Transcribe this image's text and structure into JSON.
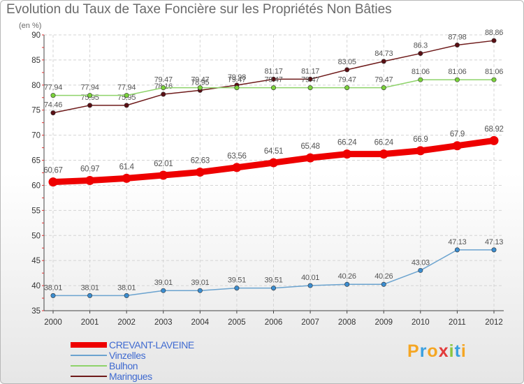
{
  "page": {
    "title": "Evolution du Taux de Taxe Foncière sur les Propriétés Non Bâties",
    "subtitle": "(en %)"
  },
  "logo": {
    "letters": [
      "P",
      "r",
      "o",
      "x",
      "i",
      "t",
      "i"
    ],
    "colors": [
      "#f5a623",
      "#3aa0e0",
      "#f5a623",
      "#e23b3b",
      "#8cc63f",
      "#3aa0e0",
      "#f5a623"
    ]
  },
  "chart_data": {
    "type": "line",
    "title": "Evolution du Taux de Taxe Foncière sur les Propriétés Non Bâties",
    "ylabel": "(en %)",
    "xlabel": "",
    "ylim": [
      35,
      90
    ],
    "yticks": [
      35,
      40,
      45,
      50,
      55,
      60,
      65,
      70,
      75,
      80,
      85,
      90
    ],
    "x": [
      "2000",
      "2001",
      "2002",
      "2003",
      "2004",
      "2005",
      "2006",
      "2007",
      "2008",
      "2009",
      "2010",
      "2011",
      "2012"
    ],
    "series": [
      {
        "name": "Maringues",
        "color": "#6e1a1a",
        "markerColor": "#5a0f14",
        "values": [
          74.46,
          75.95,
          75.95,
          78.16,
          78.95,
          79.98,
          81.17,
          81.17,
          83.05,
          84.73,
          86.3,
          87.98,
          88.86
        ],
        "labels": [
          "74.46",
          "75.95",
          "75.95",
          "78.16",
          "78.95",
          "79.98",
          "81.17",
          "81.17",
          "83.05",
          "84.73",
          "86.3",
          "87.98",
          "88.86"
        ]
      },
      {
        "name": "Bulhon",
        "color": "#8ed36a",
        "markerColor": "#7ad23a",
        "values": [
          77.94,
          77.94,
          77.94,
          79.47,
          79.47,
          79.47,
          79.47,
          79.47,
          79.47,
          79.47,
          81.06,
          81.06,
          81.06
        ],
        "labels": [
          "77.94",
          "77.94",
          "77.94",
          "79.47",
          "79.47",
          "79.47",
          "79.47",
          "79.47",
          "79.47",
          "79.47",
          "81.06",
          "81.06",
          "81.06"
        ]
      },
      {
        "name": "CREVANT-LAVEINE",
        "color": "#ee0000",
        "markerColor": "#ee0000",
        "values": [
          60.67,
          60.97,
          61.4,
          62.01,
          62.63,
          63.56,
          64.51,
          65.48,
          66.24,
          66.24,
          66.9,
          67.9,
          68.92
        ],
        "labels": [
          "60.67",
          "60.97",
          "61.4",
          "62.01",
          "62.63",
          "63.56",
          "64.51",
          "65.48",
          "66.24",
          "66.24",
          "66.9",
          "67.9",
          "68.92"
        ]
      },
      {
        "name": "Vinzelles",
        "color": "#6ba3cf",
        "markerColor": "#3b8dd0",
        "values": [
          38.01,
          38.01,
          38.01,
          39.01,
          39.01,
          39.51,
          39.51,
          40.01,
          40.26,
          40.26,
          43.03,
          47.13,
          47.13
        ],
        "labels": [
          "38.01",
          "38.01",
          "38.01",
          "39.01",
          "39.01",
          "39.51",
          "39.51",
          "40.01",
          "40.26",
          "40.26",
          "43.03",
          "47.13",
          "47.13"
        ]
      }
    ],
    "legend": [
      {
        "name": "CREVANT-LAVEINE",
        "color": "#ee0000"
      },
      {
        "name": "Vinzelles",
        "color": "#6ba3cf"
      },
      {
        "name": "Bulhon",
        "color": "#8ed36a"
      },
      {
        "name": "Maringues",
        "color": "#6e1a1a"
      }
    ],
    "legend_position": "bottom-left",
    "grid": true
  }
}
